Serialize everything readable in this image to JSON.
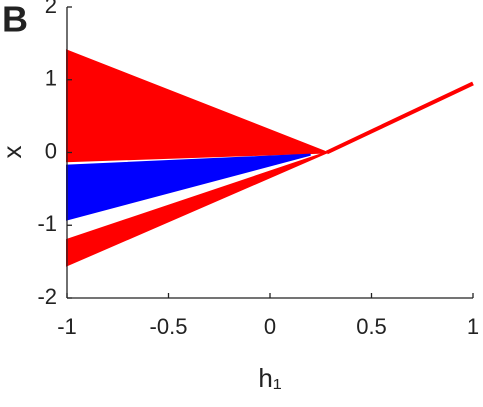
{
  "chart_data": {
    "type": "area",
    "panel_label": "B",
    "xlabel": "h₁",
    "ylabel": "x",
    "xlim": [
      -1,
      1
    ],
    "ylim": [
      -2,
      2
    ],
    "xticks": [
      -1,
      -0.5,
      0,
      0.5,
      1
    ],
    "yticks": [
      -2,
      -1,
      0,
      1,
      2
    ],
    "series": [
      {
        "color": "#ff0000",
        "x": [
          -1,
          0.28
        ],
        "upper": [
          1.4,
          0
        ],
        "lower": [
          -0.12,
          0
        ]
      },
      {
        "color": "#0000ff",
        "x": [
          -1,
          0.2
        ],
        "upper": [
          -0.18,
          -0.03
        ],
        "lower": [
          -0.92,
          -0.03
        ]
      },
      {
        "color": "#ff0000",
        "x": [
          -1,
          0.28
        ],
        "upper": [
          -1.2,
          0
        ],
        "lower": [
          -1.55,
          0
        ]
      }
    ],
    "line": {
      "color": "#ff0000",
      "x": [
        0.28,
        1
      ],
      "y": [
        0,
        0.95
      ]
    }
  }
}
